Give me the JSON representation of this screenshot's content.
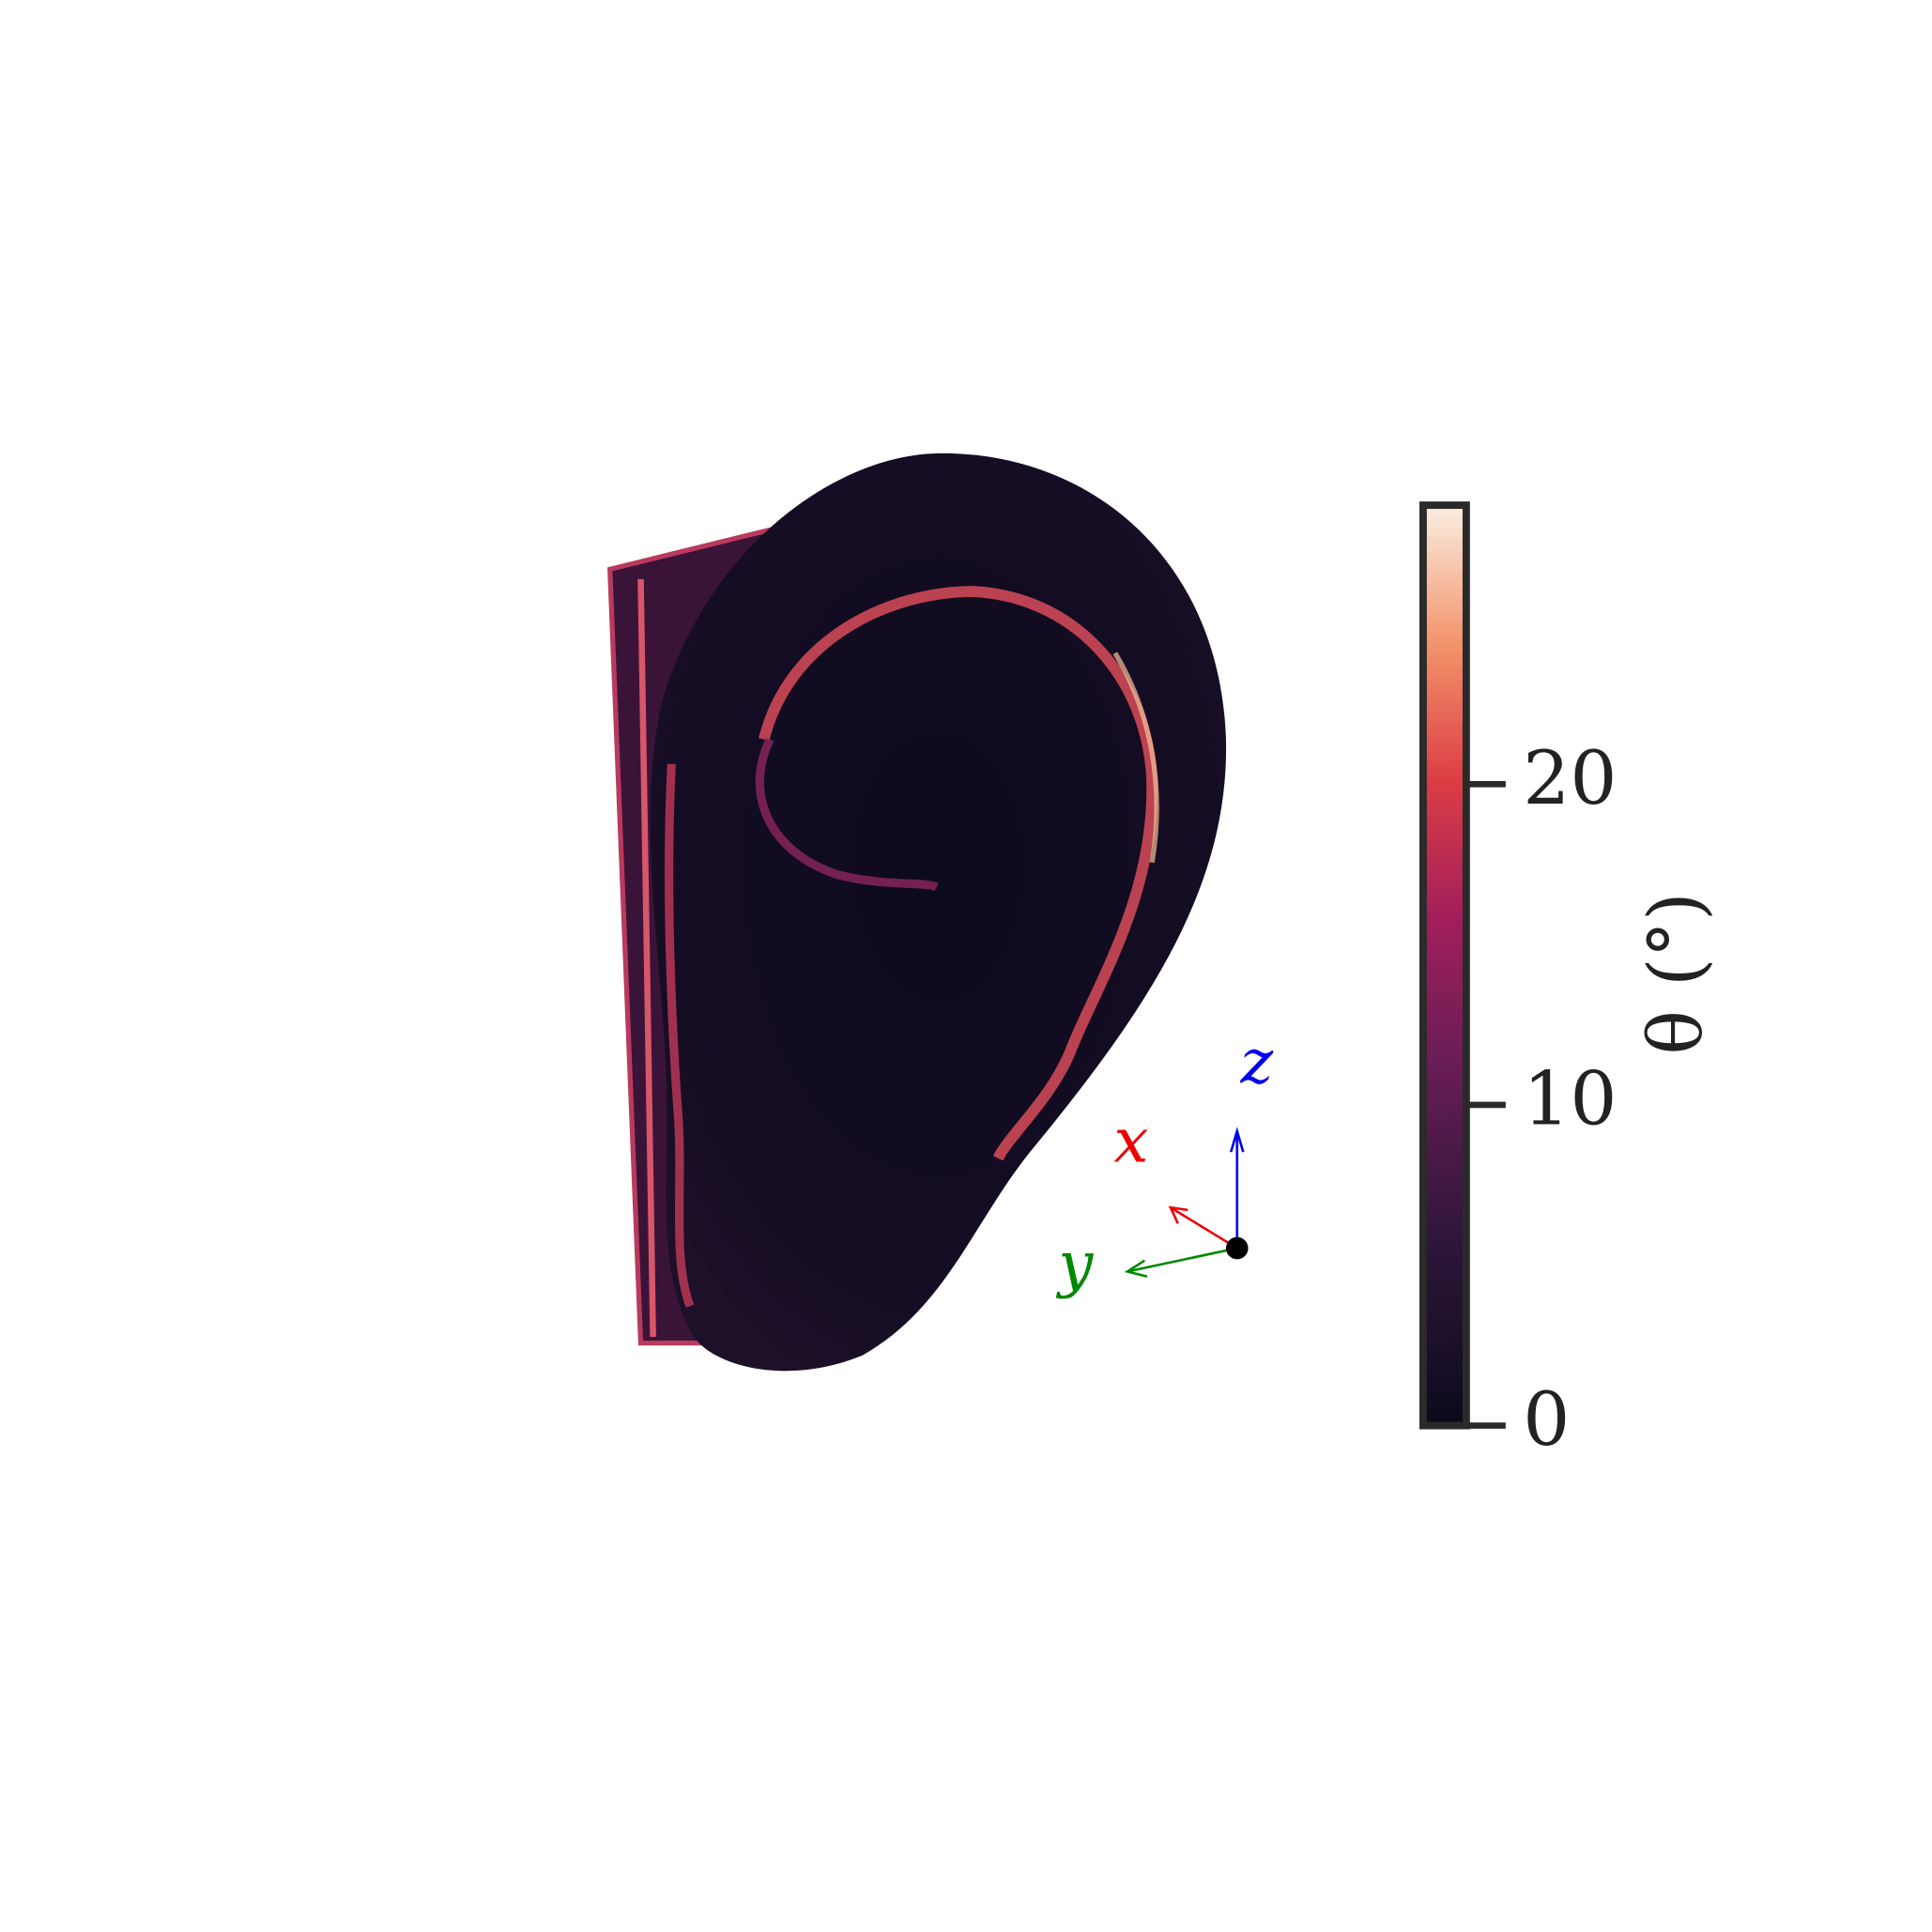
{
  "colorbar": {
    "label": "θ (°)",
    "lim": [
      0,
      28.7
    ],
    "ticks": [
      0,
      10,
      20
    ]
  },
  "triad": {
    "x": "x",
    "y": "y",
    "z": "z"
  }
}
